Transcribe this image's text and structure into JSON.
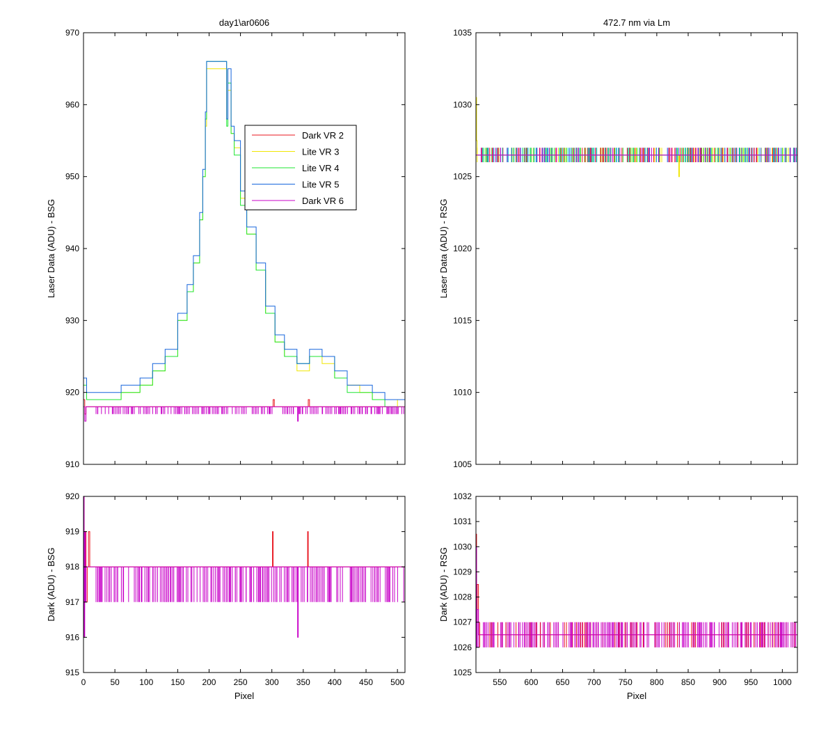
{
  "figure": {
    "background": "#ffffff",
    "series_colors": {
      "Dark VR 2": "#e8141e",
      "Lite VR 3": "#f0e600",
      "Lite VR 4": "#1ee632",
      "Lite VR 5": "#1464dc",
      "Dark VR 6": "#c800c8"
    }
  },
  "chart_data": [
    {
      "id": "bsg-laser",
      "type": "line",
      "title": "day1\\ar0606",
      "xlabel": "",
      "ylabel": "Laser Data (ADU) - BSG",
      "xlim": [
        0,
        512
      ],
      "ylim": [
        910,
        970
      ],
      "xticks": [
        0,
        50,
        100,
        150,
        200,
        250,
        300,
        350,
        400,
        450,
        500
      ],
      "xticklabels": [],
      "yticks": [
        910,
        920,
        930,
        940,
        950,
        960,
        970
      ],
      "legend": {
        "placement": "upper-center",
        "entries": [
          "Dark VR 2",
          "Lite VR 3",
          "Lite VR 4",
          "Lite VR 5",
          "Dark VR 6"
        ]
      },
      "series": [
        {
          "name": "Dark VR 2",
          "color": "#e8141e",
          "x": [
            0,
            2,
            4,
            6,
            10,
            300,
            302,
            304,
            356,
            358,
            360,
            512
          ],
          "y": [
            919,
            917,
            918,
            918,
            918,
            918,
            919,
            918,
            918,
            919,
            918,
            918
          ]
        },
        {
          "name": "Lite VR 3",
          "color": "#f0e600",
          "x": [
            0,
            5,
            10,
            30,
            60,
            90,
            110,
            130,
            150,
            165,
            175,
            185,
            190,
            194,
            196,
            228,
            230,
            235,
            240,
            250,
            260,
            275,
            290,
            305,
            320,
            340,
            360,
            380,
            400,
            420,
            440,
            460,
            480,
            500,
            512
          ],
          "y": [
            922,
            919,
            919,
            919,
            920,
            921,
            923,
            925,
            930,
            934,
            938,
            944,
            950,
            957,
            965,
            958,
            962,
            956,
            954,
            947,
            942,
            937,
            931,
            927,
            925,
            923,
            925,
            924,
            922,
            921,
            920,
            919,
            919,
            918,
            918
          ]
        },
        {
          "name": "Lite VR 4",
          "color": "#1ee632",
          "x": [
            0,
            5,
            10,
            30,
            60,
            90,
            110,
            130,
            150,
            165,
            175,
            185,
            190,
            194,
            196,
            228,
            230,
            235,
            240,
            250,
            260,
            275,
            290,
            305,
            320,
            340,
            360,
            380,
            400,
            420,
            440,
            460,
            480,
            500,
            512
          ],
          "y": [
            921,
            919,
            919,
            919,
            920,
            921,
            923,
            925,
            930,
            934,
            938,
            944,
            950,
            958,
            966,
            957,
            963,
            956,
            953,
            946,
            942,
            937,
            931,
            927,
            925,
            924,
            925,
            925,
            922,
            920,
            920,
            919,
            918,
            918,
            918
          ]
        },
        {
          "name": "Lite VR 5",
          "color": "#1464dc",
          "x": [
            0,
            5,
            10,
            30,
            60,
            90,
            110,
            130,
            150,
            165,
            175,
            185,
            190,
            194,
            196,
            228,
            230,
            235,
            240,
            250,
            260,
            275,
            290,
            305,
            320,
            340,
            360,
            380,
            400,
            420,
            440,
            460,
            480,
            500,
            512
          ],
          "y": [
            922,
            920,
            920,
            920,
            921,
            922,
            924,
            926,
            931,
            935,
            939,
            945,
            951,
            959,
            966,
            958,
            965,
            957,
            955,
            948,
            943,
            938,
            932,
            928,
            926,
            924,
            926,
            925,
            923,
            921,
            921,
            920,
            919,
            919,
            918
          ]
        },
        {
          "name": "Dark VR 6",
          "color": "#c800c8",
          "x": [
            0,
            2,
            4,
            6,
            10,
            340,
            341,
            342,
            512
          ],
          "y": [
            918,
            916,
            918,
            918,
            918,
            918,
            916,
            918,
            918
          ]
        }
      ]
    },
    {
      "id": "rsg-laser",
      "type": "line",
      "title": "472.7 nm via Lm",
      "xlabel": "",
      "ylabel": "Laser Data (ADU) - RSG",
      "xlim": [
        512,
        1024
      ],
      "ylim": [
        1005,
        1035
      ],
      "xticks": [
        550,
        600,
        650,
        700,
        750,
        800,
        850,
        900,
        950,
        1000
      ],
      "xticklabels": [],
      "yticks": [
        1005,
        1010,
        1015,
        1020,
        1025,
        1030,
        1035
      ],
      "series": [
        {
          "name": "Lite VR 3",
          "color": "#f0e600",
          "x": [
            512,
            513,
            514,
            516,
            834,
            835,
            836,
            1024
          ],
          "y": [
            1030.5,
            1027.5,
            1026.5,
            1026.5,
            1026.5,
            1025,
            1026.5,
            1026.5
          ]
        },
        {
          "name": "Lite VR 5",
          "color": "#1464dc",
          "x": [
            512,
            1024
          ],
          "y": [
            1026.5,
            1026.5
          ]
        },
        {
          "name": "Dark VR 6",
          "color": "#c800c8",
          "x": [
            512,
            1024
          ],
          "y": [
            1026.5,
            1026.5
          ]
        }
      ]
    },
    {
      "id": "bsg-dark",
      "type": "line",
      "title": "",
      "xlabel": "Pixel",
      "ylabel": "Dark (ADU) - BSG",
      "xlim": [
        0,
        512
      ],
      "ylim": [
        915,
        920
      ],
      "xticks": [
        0,
        50,
        100,
        150,
        200,
        250,
        300,
        350,
        400,
        450,
        500
      ],
      "yticks": [
        915,
        916,
        917,
        918,
        919,
        920
      ],
      "series": [
        {
          "name": "Dark VR 2",
          "color": "#e8141e",
          "x": [
            0,
            1,
            2,
            4,
            6,
            8,
            10,
            300,
            301,
            302,
            303,
            304,
            356,
            357,
            358,
            359,
            360,
            512
          ],
          "y": [
            920,
            918,
            919,
            917,
            918,
            919,
            918,
            918,
            919,
            918,
            918,
            918,
            918,
            919,
            918,
            918,
            918,
            918
          ]
        },
        {
          "name": "Dark VR 6",
          "color": "#c800c8",
          "x": [
            0,
            1,
            2,
            3,
            4,
            340,
            341,
            342,
            512
          ],
          "y": [
            920,
            916,
            919,
            917,
            918,
            918,
            916,
            918,
            918
          ]
        }
      ]
    },
    {
      "id": "rsg-dark",
      "type": "line",
      "title": "",
      "xlabel": "Pixel",
      "ylabel": "Dark (ADU) - RSG",
      "xlim": [
        512,
        1024
      ],
      "ylim": [
        1025,
        1032
      ],
      "xticks": [
        550,
        600,
        650,
        700,
        750,
        800,
        850,
        900,
        950,
        1000
      ],
      "yticks": [
        1025,
        1026,
        1027,
        1028,
        1029,
        1030,
        1031,
        1032
      ],
      "series": [
        {
          "name": "Dark VR 2",
          "color": "#e8141e",
          "x": [
            512,
            513,
            514,
            516,
            1024
          ],
          "y": [
            1030.5,
            1027,
            1028.5,
            1026.5,
            1026.5
          ]
        },
        {
          "name": "Dark VR 6",
          "color": "#c800c8",
          "x": [
            512,
            513,
            514,
            516,
            1024
          ],
          "y": [
            1030,
            1026,
            1027.5,
            1026.5,
            1026.5
          ]
        }
      ]
    }
  ]
}
